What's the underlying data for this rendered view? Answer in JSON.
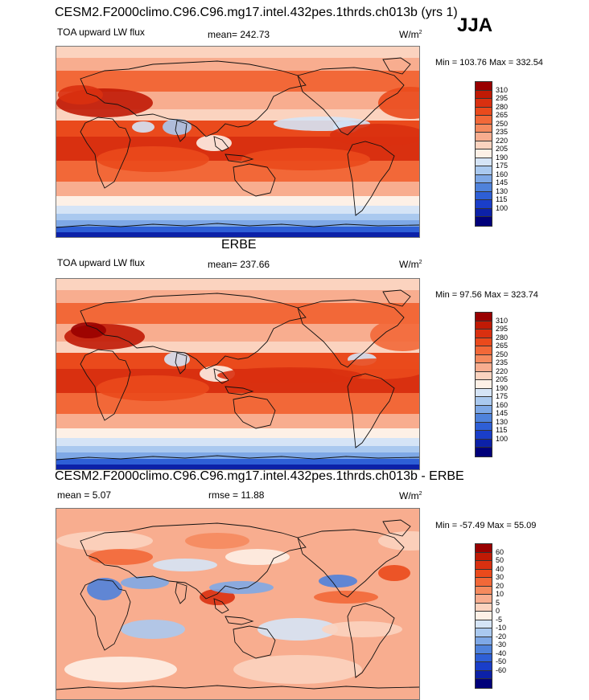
{
  "season": "JJA",
  "chart_data": [
    {
      "type": "heatmap",
      "title": "CESM2.F2000climo.C96.C96.mg17.intel.432pes.1thrds.ch013b (yrs 1)",
      "variable": "TOA upward LW flux",
      "mean_text": "mean= 242.73",
      "units_text": "W/m",
      "units_sup": "2",
      "minmax_text": "Min = 103.76 Max = 332.54",
      "min": 103.76,
      "max": 332.54,
      "mean": 242.73,
      "colorbar_labels": [
        "310",
        "295",
        "280",
        "265",
        "250",
        "235",
        "220",
        "205",
        "190",
        "175",
        "160",
        "145",
        "130",
        "115",
        "100"
      ],
      "colors": [
        "#990000",
        "#c01a05",
        "#d93010",
        "#ea4a1c",
        "#f26838",
        "#f58a5e",
        "#f8ad8f",
        "#fbd3bf",
        "#fdf0e6",
        "#d5e4f6",
        "#aac9ef",
        "#7ea8e6",
        "#4f82db",
        "#2e5fd6",
        "#1a3ec9",
        "#0c21a8",
        "#00007a"
      ]
    },
    {
      "type": "heatmap",
      "title": "ERBE",
      "variable": "TOA upward LW flux",
      "mean_text": "mean= 237.66",
      "units_text": "W/m",
      "units_sup": "2",
      "minmax_text": "Min = 97.56 Max = 323.74",
      "min": 97.56,
      "max": 323.74,
      "mean": 237.66,
      "colorbar_labels": [
        "310",
        "295",
        "280",
        "265",
        "250",
        "235",
        "220",
        "205",
        "190",
        "175",
        "160",
        "145",
        "130",
        "115",
        "100"
      ],
      "colors": [
        "#990000",
        "#c01a05",
        "#d93010",
        "#ea4a1c",
        "#f26838",
        "#f58a5e",
        "#f8ad8f",
        "#fbd3bf",
        "#fdf0e6",
        "#d5e4f6",
        "#aac9ef",
        "#7ea8e6",
        "#4f82db",
        "#2e5fd6",
        "#1a3ec9",
        "#0c21a8",
        "#00007a"
      ]
    },
    {
      "type": "heatmap",
      "title": "CESM2.F2000climo.C96.C96.mg17.intel.432pes.1thrds.ch013b - ERBE",
      "mean_text": "mean =   5.07",
      "rmse_text": "rmse =  11.88",
      "units_text": "W/m",
      "units_sup": "2",
      "minmax_text": "Min = -57.49 Max =  55.09",
      "min": -57.49,
      "max": 55.09,
      "mean": 5.07,
      "rmse": 11.88,
      "colorbar_labels": [
        "60",
        "50",
        "40",
        "30",
        "20",
        "10",
        "5",
        "0",
        "-5",
        "-10",
        "-20",
        "-30",
        "-40",
        "-50",
        "-60"
      ],
      "colors": [
        "#990000",
        "#c01a05",
        "#d93010",
        "#ea4a1c",
        "#f26838",
        "#f58a5e",
        "#f8ad8f",
        "#fbd3bf",
        "#fdf0e6",
        "#d5e4f6",
        "#aac9ef",
        "#7ea8e6",
        "#4f82db",
        "#2e5fd6",
        "#1a3ec9",
        "#0c21a8",
        "#00007a"
      ]
    }
  ]
}
